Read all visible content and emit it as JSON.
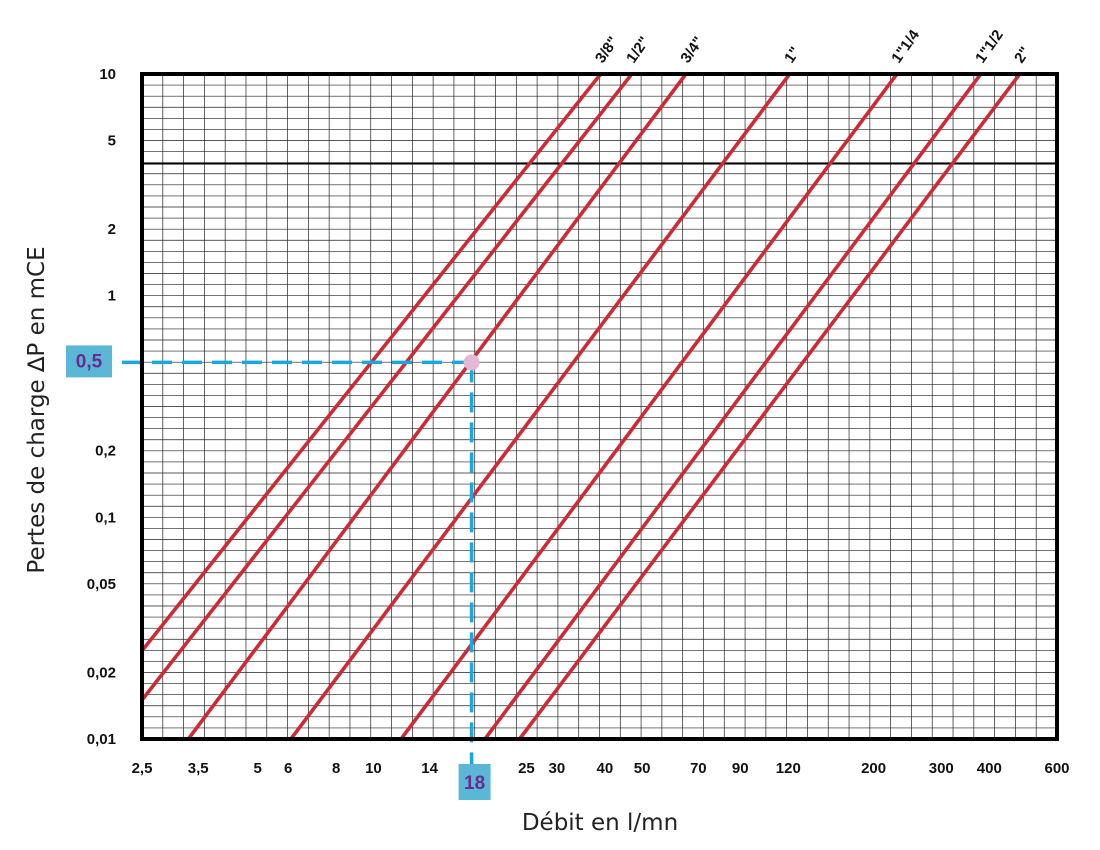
{
  "chart_data": {
    "type": "line",
    "xlabel": "Débit en l/mn",
    "ylabel": "Pertes de charge ∆P en mCE",
    "x_scale": "log",
    "y_scale": "log",
    "xlim": [
      2.5,
      600
    ],
    "ylim": [
      0.01,
      10
    ],
    "x_ticks": [
      {
        "value": 2.5,
        "label": "2,5"
      },
      {
        "value": 3.5,
        "label": "3,5"
      },
      {
        "value": 5,
        "label": "5"
      },
      {
        "value": 6,
        "label": "6"
      },
      {
        "value": 8,
        "label": "8"
      },
      {
        "value": 10,
        "label": "10"
      },
      {
        "value": 14,
        "label": "14"
      },
      {
        "value": 25,
        "label": "25"
      },
      {
        "value": 30,
        "label": "30"
      },
      {
        "value": 40,
        "label": "40"
      },
      {
        "value": 50,
        "label": "50"
      },
      {
        "value": 70,
        "label": "70"
      },
      {
        "value": 90,
        "label": "90"
      },
      {
        "value": 120,
        "label": "120"
      },
      {
        "value": 200,
        "label": "200"
      },
      {
        "value": 300,
        "label": "300"
      },
      {
        "value": 400,
        "label": "400"
      },
      {
        "value": 600,
        "label": "600"
      }
    ],
    "y_ticks": [
      {
        "value": 0.01,
        "label": "0,01"
      },
      {
        "value": 0.02,
        "label": "0,02"
      },
      {
        "value": 0.05,
        "label": "0,05"
      },
      {
        "value": 0.1,
        "label": "0,1"
      },
      {
        "value": 0.2,
        "label": "0,2"
      },
      {
        "value": 1,
        "label": "1"
      },
      {
        "value": 2,
        "label": "2"
      },
      {
        "value": 5,
        "label": "5"
      },
      {
        "value": 10,
        "label": "10"
      }
    ],
    "grid": true,
    "series": [
      {
        "name": "3/8\"",
        "x": [
          2.5,
          39
        ],
        "y": [
          0.025,
          10
        ]
      },
      {
        "name": "1/2\"",
        "x": [
          2.5,
          47
        ],
        "y": [
          0.015,
          10
        ]
      },
      {
        "name": "3/4\"",
        "x": [
          3.3,
          65
        ],
        "y": [
          0.01,
          10
        ]
      },
      {
        "name": "1\"",
        "x": [
          6.1,
          121
        ],
        "y": [
          0.01,
          10
        ]
      },
      {
        "name": "1\"1/4",
        "x": [
          11.8,
          230
        ],
        "y": [
          0.01,
          10
        ]
      },
      {
        "name": "1\"1/2",
        "x": [
          19.5,
          380
        ],
        "y": [
          0.01,
          10
        ]
      },
      {
        "name": "2\"",
        "x": [
          24,
          480
        ],
        "y": [
          0.01,
          10
        ]
      }
    ],
    "annotations": {
      "reading_point": {
        "x": 18,
        "y": 0.5
      },
      "x_marker_label": "18",
      "y_marker_label": "0,5"
    },
    "colors": {
      "series": "#cc2b36",
      "guide": "#1aa7df",
      "marker_box": "#5bb7d6",
      "marker_text": "#6a2a91",
      "point": "#e2b8d2",
      "grid": "#222222",
      "frame": "#000000"
    }
  }
}
